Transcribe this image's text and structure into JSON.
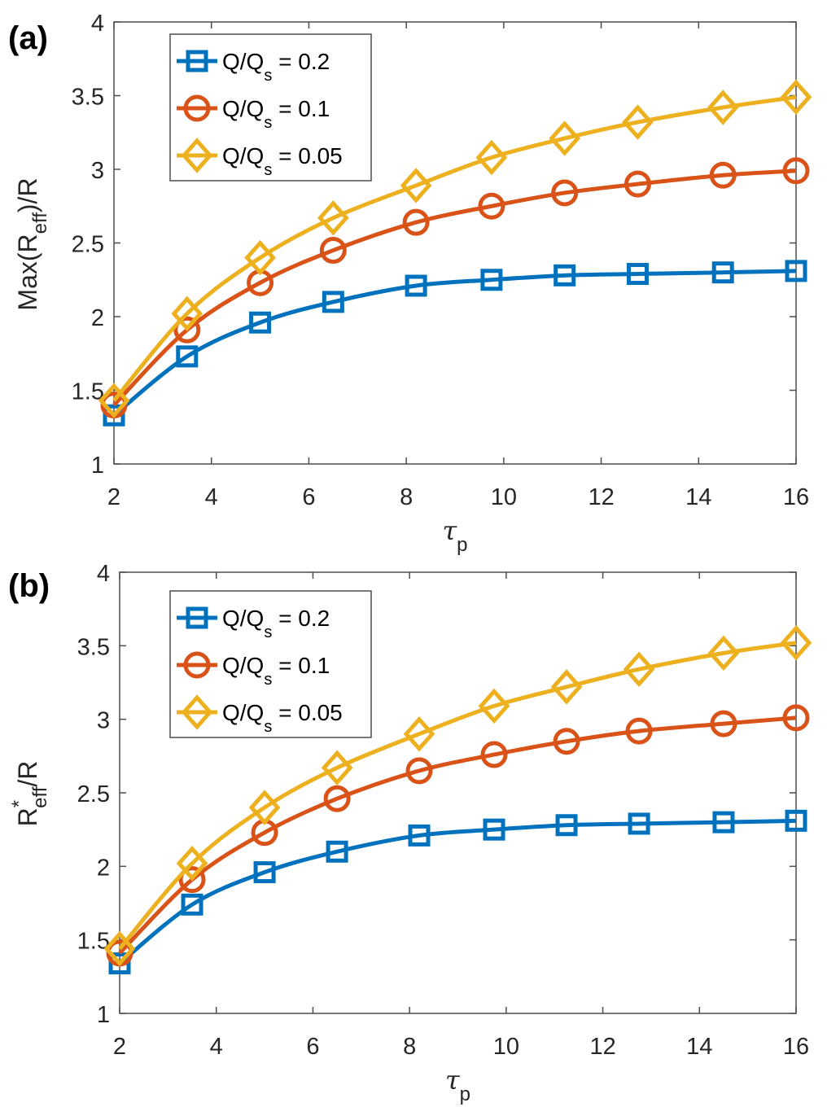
{
  "chart_data": [
    {
      "panel": "(a)",
      "type": "line",
      "title": "",
      "xlabel": "τ",
      "xlabel_subscript": "p",
      "ylabel_parts": [
        "Max(R",
        "eff",
        ")/R"
      ],
      "ylabel": "Max(R_eff)/R",
      "xlim": [
        2,
        16
      ],
      "ylim": [
        1,
        4
      ],
      "xticks": [
        2,
        4,
        6,
        8,
        10,
        12,
        14,
        16
      ],
      "yticks": [
        1,
        1.5,
        2,
        2.5,
        3,
        3.5,
        4
      ],
      "ytick_labels": [
        "1",
        "1.5",
        "2",
        "2.5",
        "3",
        "3.5",
        "4"
      ],
      "grid": false,
      "legend_position": "top-left",
      "x": [
        2,
        3.5,
        5,
        6.5,
        8.2,
        9.75,
        11.25,
        12.75,
        14.5,
        16
      ],
      "series": [
        {
          "name": "Q/Qs = 0.2",
          "legend_main": "Q/Q",
          "legend_sub": "s",
          "legend_value": " = 0.2",
          "marker": "square",
          "color": "#0072BD",
          "values": [
            1.33,
            1.73,
            1.96,
            2.1,
            2.21,
            2.25,
            2.28,
            2.29,
            2.3,
            2.31
          ]
        },
        {
          "name": "Q/Qs = 0.1",
          "legend_main": "Q/Q",
          "legend_sub": "s",
          "legend_value": " = 0.1",
          "marker": "circle",
          "color": "#D95319",
          "values": [
            1.4,
            1.91,
            2.23,
            2.45,
            2.64,
            2.75,
            2.84,
            2.9,
            2.96,
            2.99
          ]
        },
        {
          "name": "Q/Qs = 0.05",
          "legend_main": "Q/Q",
          "legend_sub": "s",
          "legend_value": " = 0.05",
          "marker": "diamond",
          "color": "#EDB120",
          "values": [
            1.43,
            2.02,
            2.4,
            2.67,
            2.89,
            3.08,
            3.21,
            3.32,
            3.42,
            3.49
          ]
        }
      ]
    },
    {
      "panel": "(b)",
      "type": "line",
      "title": "",
      "xlabel": "τ",
      "xlabel_subscript": "p",
      "ylabel_parts": [
        "R",
        "eff",
        "/R"
      ],
      "ylabel_superscript": "*",
      "ylabel": "R*_eff/R",
      "xlim": [
        2,
        16
      ],
      "ylim": [
        1,
        4
      ],
      "xticks": [
        2,
        4,
        6,
        8,
        10,
        12,
        14,
        16
      ],
      "yticks": [
        1,
        1.5,
        2,
        2.5,
        3,
        3.5,
        4
      ],
      "ytick_labels": [
        "1",
        "1.5",
        "2",
        "2.5",
        "3",
        "3.5",
        "4"
      ],
      "grid": false,
      "legend_position": "top-left",
      "x": [
        2,
        3.5,
        5,
        6.5,
        8.2,
        9.75,
        11.25,
        12.75,
        14.5,
        16
      ],
      "series": [
        {
          "name": "Q/Qs = 0.2",
          "legend_main": "Q/Q",
          "legend_sub": "s",
          "legend_value": " = 0.2",
          "marker": "square",
          "color": "#0072BD",
          "values": [
            1.34,
            1.74,
            1.96,
            2.1,
            2.21,
            2.25,
            2.28,
            2.29,
            2.3,
            2.31
          ]
        },
        {
          "name": "Q/Qs = 0.1",
          "legend_main": "Q/Q",
          "legend_sub": "s",
          "legend_value": " = 0.1",
          "marker": "circle",
          "color": "#D95319",
          "values": [
            1.41,
            1.91,
            2.23,
            2.46,
            2.65,
            2.76,
            2.85,
            2.92,
            2.97,
            3.01
          ]
        },
        {
          "name": "Q/Qs = 0.05",
          "legend_main": "Q/Q",
          "legend_sub": "s",
          "legend_value": " = 0.05",
          "marker": "diamond",
          "color": "#EDB120",
          "values": [
            1.44,
            2.02,
            2.4,
            2.67,
            2.9,
            3.09,
            3.22,
            3.34,
            3.45,
            3.52
          ]
        }
      ]
    }
  ]
}
